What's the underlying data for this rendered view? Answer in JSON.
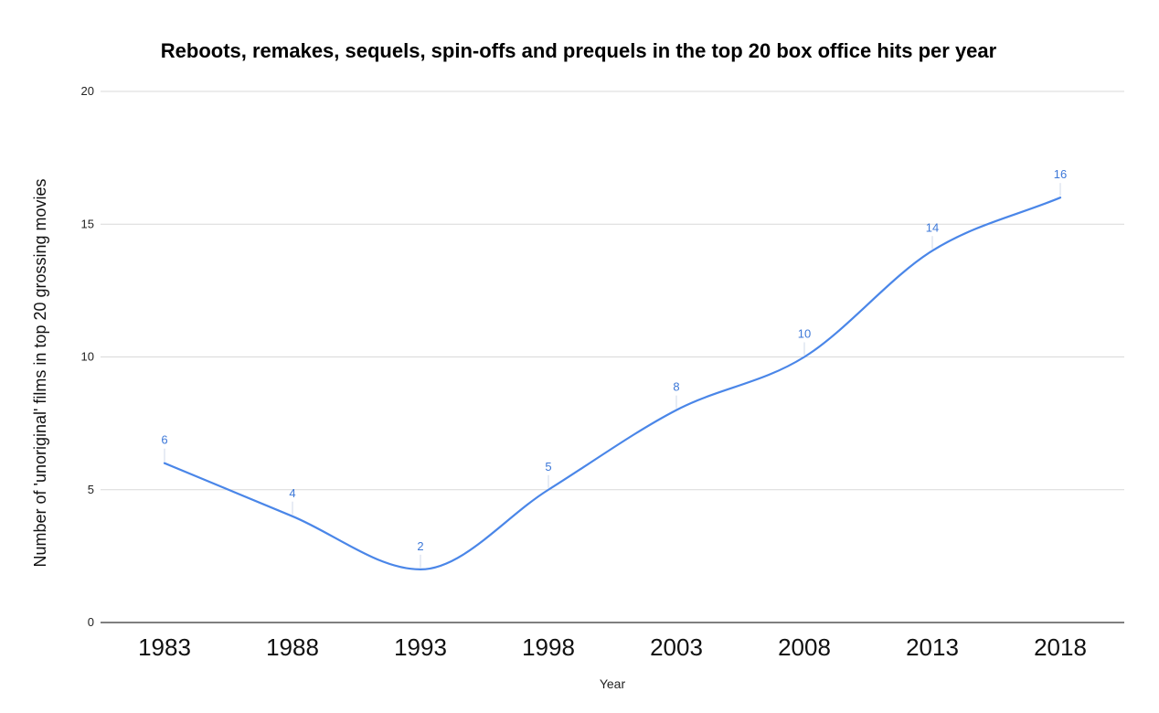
{
  "chart_data": {
    "type": "line",
    "title": "Reboots, remakes, sequels, spin-offs and prequels in the top 20 box office hits per year",
    "xlabel": "Year",
    "ylabel": "Number of 'unoriginal' films in top 20 grossing movies",
    "categories": [
      "1983",
      "1988",
      "1993",
      "1998",
      "2003",
      "2008",
      "2013",
      "2018"
    ],
    "series": [
      {
        "values": [
          6,
          4,
          2,
          5,
          8,
          10,
          14,
          16
        ]
      }
    ],
    "ylim": [
      0,
      20
    ],
    "yticks": [
      "0",
      "5",
      "10",
      "15",
      "20"
    ],
    "grid": true,
    "legend": "none",
    "smooth": true,
    "data_labels": true,
    "colors": {
      "line": "#4a86e8",
      "label": "#3d78d8",
      "grid": "#d9d9d9",
      "axis": "#333333"
    }
  }
}
